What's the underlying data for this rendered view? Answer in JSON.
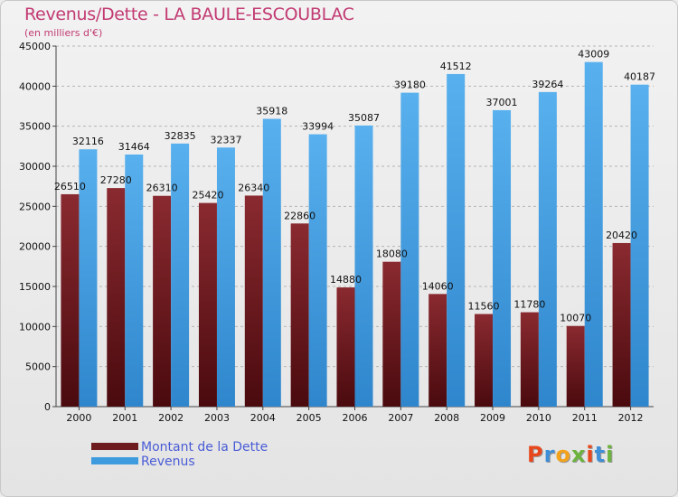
{
  "title": "Revenus/Dette - LA BAULE-ESCOUBLAC",
  "subtitle": "(en milliers d'€)",
  "logo_text": "Proxiti",
  "logo_colors": [
    "#e8471c",
    "#3f8fd8",
    "#f3a21b",
    "#6cb33f",
    "#e8471c",
    "#3f8fd8",
    "#6cb33f"
  ],
  "colors": {
    "dette": "#6e1b1f",
    "revenus": "#3d9bde",
    "grid": "#b5b5b5",
    "title": "#c23a72",
    "legend_text": "#4a5cd6"
  },
  "chart_data": {
    "type": "bar",
    "title": "Revenus/Dette - LA BAULE-ESCOUBLAC",
    "ylabel": "(en milliers d'€)",
    "categories": [
      "2000",
      "2001",
      "2002",
      "2003",
      "2004",
      "2005",
      "2006",
      "2007",
      "2008",
      "2009",
      "2010",
      "2011",
      "2012"
    ],
    "ylim": [
      0,
      45000
    ],
    "yticks": [
      0,
      5000,
      10000,
      15000,
      20000,
      25000,
      30000,
      35000,
      40000,
      45000
    ],
    "grid": true,
    "legend_position": "bottom-left",
    "series": [
      {
        "name": "Montant de la Dette",
        "values": [
          26510,
          27280,
          26310,
          25420,
          26340,
          22860,
          14880,
          18080,
          14060,
          11560,
          11780,
          10070,
          20420
        ],
        "labels": [
          "26510",
          "27280",
          "26310",
          "25420",
          "26340",
          "22860",
          "14880",
          "18080",
          "14060",
          "11560",
          "11780",
          "10070",
          "20420"
        ]
      },
      {
        "name": "Revenus",
        "values": [
          32116,
          31464,
          32835,
          32337,
          35918,
          33994,
          35087,
          39180,
          41512,
          37001,
          39264,
          43009,
          40187
        ],
        "labels": [
          "32116",
          "31464",
          "32835",
          "32337",
          "35918",
          "33994",
          "35087",
          "39180",
          "41512",
          "37001",
          "39264",
          "43009",
          "40187"
        ]
      }
    ]
  }
}
